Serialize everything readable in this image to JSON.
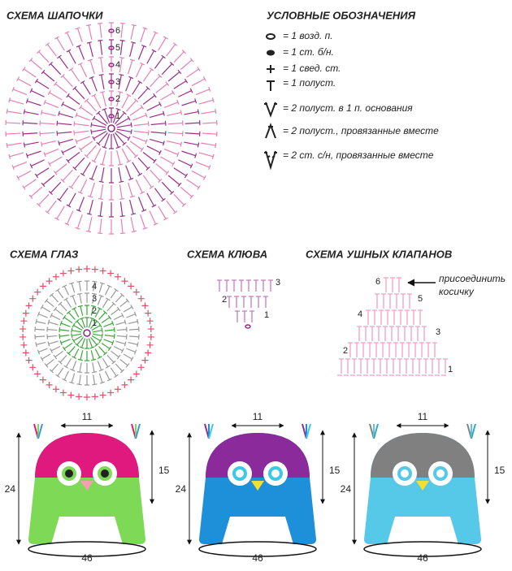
{
  "hat_scheme": {
    "title": "СХЕМА ШАПОЧКИ",
    "rows": [
      1,
      2,
      3,
      4,
      5,
      6
    ]
  },
  "legend": {
    "title": "УСЛОВНЫЕ ОБОЗНАЧЕНИЯ",
    "items": [
      "= 1 возд. п.",
      "= 1 ст. б/н.",
      "= 1 свед. ст.",
      "= 1 полуст.",
      "= 2 полуст. в 1 п. основания",
      "= 2 полуст., провязанные вместе",
      "= 2 ст. с/н, провязанные вместе"
    ]
  },
  "eye_scheme": {
    "title": "СХЕМА ГЛАЗ",
    "rows": [
      1,
      2,
      3,
      4
    ]
  },
  "beak_scheme": {
    "title": "СХЕМА КЛЮВА",
    "rows": [
      1,
      2,
      3
    ]
  },
  "ear_flap_scheme": {
    "title": "СХЕМА УШНЫХ КЛАПАНОВ",
    "note": [
      "присоединить",
      "косичку"
    ],
    "rows": [
      1,
      2,
      3,
      4,
      5,
      6
    ]
  },
  "hats": [
    {
      "top_width": 11,
      "dome_height": 15,
      "total_height": 24,
      "circumference": 46
    },
    {
      "top_width": 11,
      "dome_height": 15,
      "total_height": 24,
      "circumference": 46
    },
    {
      "top_width": 11,
      "dome_height": 15,
      "total_height": 24,
      "circumference": 46
    }
  ]
}
